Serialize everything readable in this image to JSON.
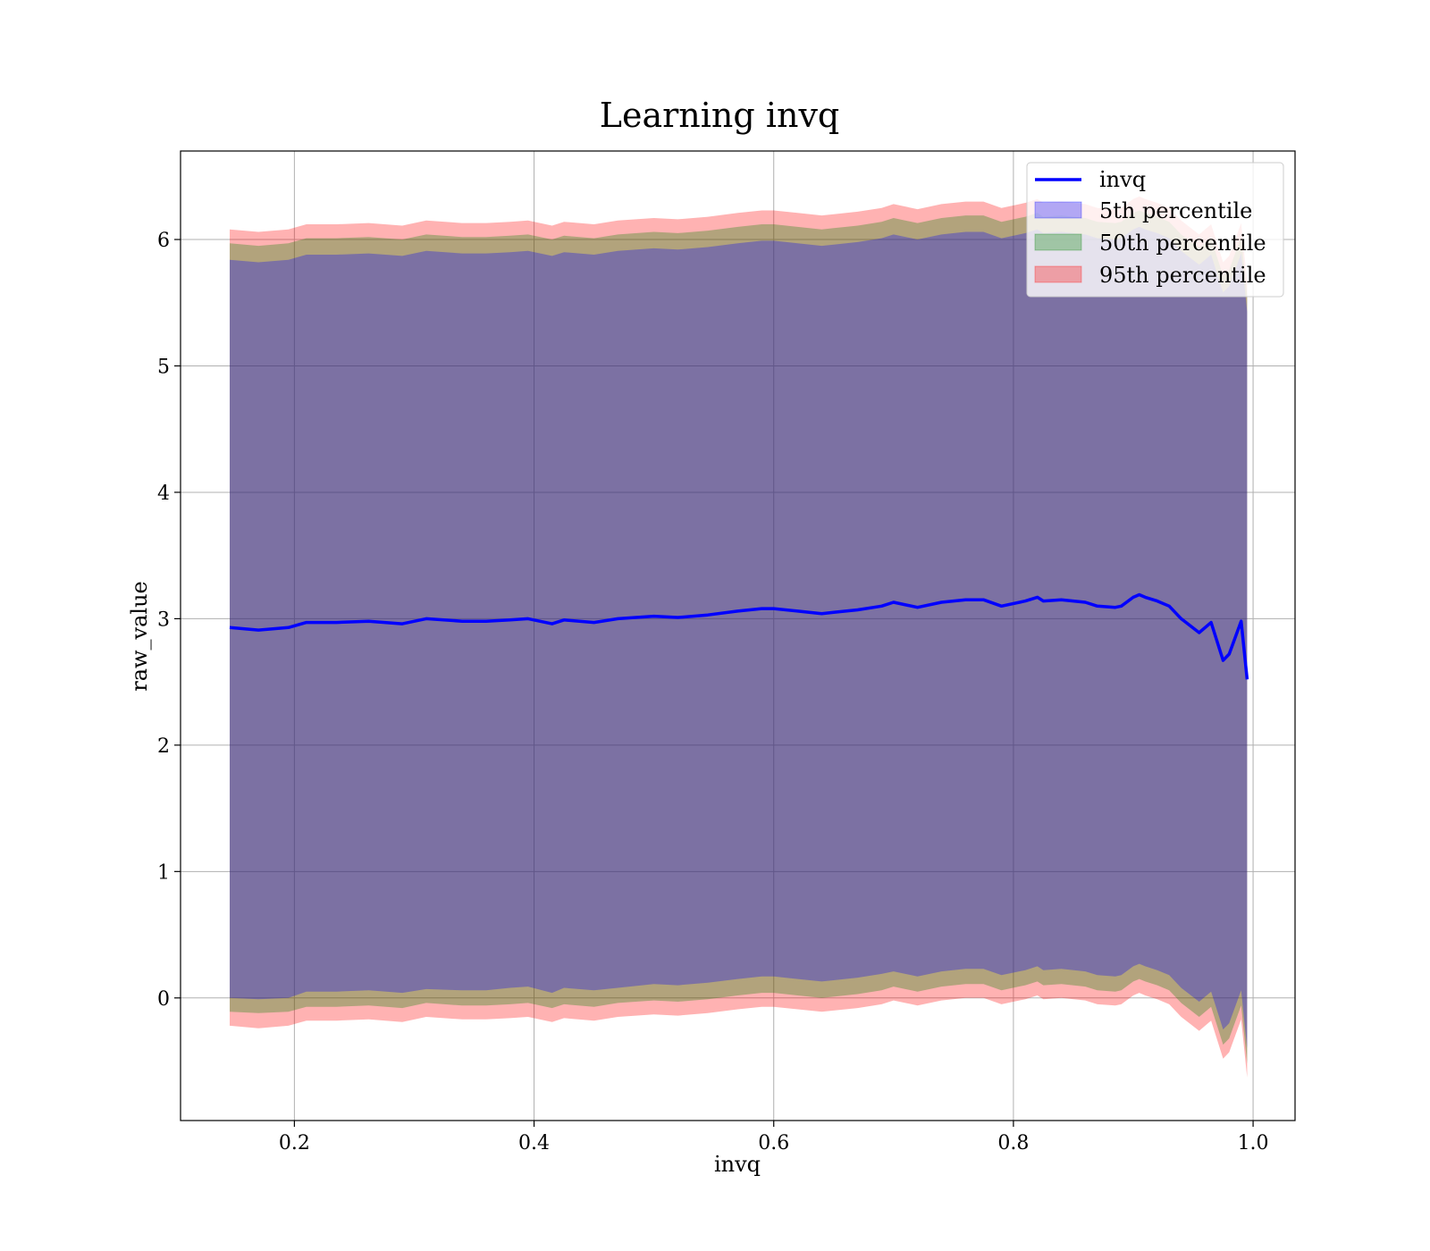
{
  "chart_data": {
    "type": "area",
    "title": "Learning invq",
    "xlabel": "invq",
    "ylabel": "raw_value",
    "xlim": [
      0.105,
      1.035
    ],
    "ylim": [
      -0.97,
      6.7
    ],
    "xticks": [
      0.2,
      0.4,
      0.6,
      0.8,
      1.0
    ],
    "xtick_labels": [
      "0.2",
      "0.4",
      "0.6",
      "0.8",
      "1.0"
    ],
    "yticks": [
      0,
      1,
      2,
      3,
      4,
      5,
      6
    ],
    "ytick_labels": [
      "0",
      "1",
      "2",
      "3",
      "4",
      "5",
      "6"
    ],
    "grid": true,
    "legend_position": "top-right",
    "x": [
      0.146,
      0.17,
      0.195,
      0.21,
      0.235,
      0.262,
      0.29,
      0.31,
      0.34,
      0.36,
      0.38,
      0.395,
      0.415,
      0.425,
      0.45,
      0.47,
      0.5,
      0.52,
      0.545,
      0.57,
      0.59,
      0.6,
      0.62,
      0.64,
      0.65,
      0.67,
      0.69,
      0.7,
      0.72,
      0.74,
      0.76,
      0.775,
      0.79,
      0.81,
      0.82,
      0.825,
      0.84,
      0.86,
      0.87,
      0.885,
      0.89,
      0.9,
      0.905,
      0.91,
      0.92,
      0.93,
      0.94,
      0.955,
      0.965,
      0.975,
      0.98,
      0.99,
      0.995
    ],
    "line": {
      "name": "invq",
      "color": "#0000ff",
      "values": [
        2.93,
        2.91,
        2.93,
        2.97,
        2.97,
        2.98,
        2.96,
        3.0,
        2.98,
        2.98,
        2.99,
        3.0,
        2.96,
        2.99,
        2.97,
        3.0,
        3.02,
        3.01,
        3.03,
        3.06,
        3.08,
        3.08,
        3.06,
        3.04,
        3.05,
        3.07,
        3.1,
        3.13,
        3.09,
        3.13,
        3.15,
        3.15,
        3.1,
        3.14,
        3.17,
        3.14,
        3.15,
        3.13,
        3.1,
        3.09,
        3.1,
        3.17,
        3.19,
        3.17,
        3.14,
        3.1,
        3.0,
        2.89,
        2.97,
        2.67,
        2.72,
        2.98,
        2.52
      ]
    },
    "series": [
      {
        "name": "5th percentile",
        "color": "#0000ff",
        "lower": [
          0.0,
          -0.01,
          0.0,
          0.05,
          0.05,
          0.06,
          0.04,
          0.07,
          0.06,
          0.06,
          0.08,
          0.09,
          0.04,
          0.08,
          0.06,
          0.08,
          0.11,
          0.1,
          0.12,
          0.15,
          0.17,
          0.17,
          0.15,
          0.13,
          0.14,
          0.16,
          0.19,
          0.21,
          0.17,
          0.21,
          0.23,
          0.23,
          0.18,
          0.22,
          0.25,
          0.22,
          0.23,
          0.21,
          0.18,
          0.17,
          0.18,
          0.25,
          0.27,
          0.25,
          0.22,
          0.18,
          0.08,
          -0.03,
          0.05,
          -0.25,
          -0.2,
          0.06,
          -0.4
        ],
        "upper": [
          5.84,
          5.82,
          5.84,
          5.88,
          5.88,
          5.89,
          5.87,
          5.91,
          5.89,
          5.89,
          5.9,
          5.91,
          5.87,
          5.9,
          5.88,
          5.91,
          5.93,
          5.92,
          5.94,
          5.97,
          5.99,
          5.99,
          5.97,
          5.95,
          5.96,
          5.98,
          6.01,
          6.04,
          6.0,
          6.04,
          6.06,
          6.06,
          6.01,
          6.05,
          6.08,
          6.05,
          6.06,
          6.04,
          6.01,
          6.0,
          6.01,
          6.08,
          6.1,
          6.08,
          6.05,
          6.01,
          5.91,
          5.8,
          5.88,
          5.58,
          5.63,
          5.89,
          5.43
        ]
      },
      {
        "name": "50th percentile",
        "color": "#008000",
        "lower": [
          -0.11,
          -0.12,
          -0.11,
          -0.07,
          -0.07,
          -0.06,
          -0.08,
          -0.04,
          -0.06,
          -0.06,
          -0.05,
          -0.04,
          -0.08,
          -0.05,
          -0.07,
          -0.04,
          -0.02,
          -0.03,
          -0.01,
          0.02,
          0.04,
          0.04,
          0.02,
          0.0,
          0.01,
          0.03,
          0.06,
          0.09,
          0.05,
          0.09,
          0.11,
          0.11,
          0.06,
          0.1,
          0.13,
          0.1,
          0.11,
          0.09,
          0.06,
          0.05,
          0.06,
          0.13,
          0.15,
          0.13,
          0.1,
          0.06,
          -0.04,
          -0.15,
          -0.07,
          -0.37,
          -0.32,
          -0.06,
          -0.52
        ],
        "upper": [
          5.97,
          5.95,
          5.97,
          6.01,
          6.01,
          6.02,
          6.0,
          6.04,
          6.02,
          6.02,
          6.03,
          6.04,
          6.0,
          6.03,
          6.01,
          6.04,
          6.06,
          6.05,
          6.07,
          6.1,
          6.12,
          6.12,
          6.1,
          6.08,
          6.09,
          6.11,
          6.14,
          6.17,
          6.13,
          6.17,
          6.19,
          6.19,
          6.14,
          6.18,
          6.21,
          6.18,
          6.19,
          6.17,
          6.14,
          6.13,
          6.14,
          6.21,
          6.23,
          6.21,
          6.18,
          6.14,
          6.04,
          5.93,
          6.01,
          5.71,
          5.76,
          6.02,
          5.56
        ]
      },
      {
        "name": "95th percentile",
        "color": "#ff0000",
        "lower": [
          -0.22,
          -0.24,
          -0.22,
          -0.18,
          -0.18,
          -0.17,
          -0.19,
          -0.15,
          -0.17,
          -0.17,
          -0.16,
          -0.15,
          -0.19,
          -0.16,
          -0.18,
          -0.15,
          -0.13,
          -0.14,
          -0.12,
          -0.09,
          -0.07,
          -0.07,
          -0.09,
          -0.11,
          -0.1,
          -0.08,
          -0.05,
          -0.02,
          -0.06,
          -0.02,
          0.0,
          0.0,
          -0.05,
          -0.01,
          0.02,
          -0.01,
          0.0,
          -0.02,
          -0.05,
          -0.06,
          -0.05,
          0.02,
          0.04,
          0.02,
          -0.01,
          -0.05,
          -0.15,
          -0.26,
          -0.18,
          -0.48,
          -0.43,
          -0.17,
          -0.63
        ],
        "upper": [
          6.08,
          6.06,
          6.08,
          6.12,
          6.12,
          6.13,
          6.11,
          6.15,
          6.13,
          6.13,
          6.14,
          6.15,
          6.11,
          6.14,
          6.12,
          6.15,
          6.17,
          6.16,
          6.18,
          6.21,
          6.23,
          6.23,
          6.21,
          6.19,
          6.2,
          6.22,
          6.25,
          6.28,
          6.24,
          6.28,
          6.3,
          6.3,
          6.25,
          6.29,
          6.32,
          6.29,
          6.3,
          6.28,
          6.25,
          6.24,
          6.25,
          6.32,
          6.34,
          6.32,
          6.29,
          6.25,
          6.15,
          6.04,
          6.12,
          5.82,
          5.87,
          6.13,
          5.67
        ]
      }
    ]
  }
}
